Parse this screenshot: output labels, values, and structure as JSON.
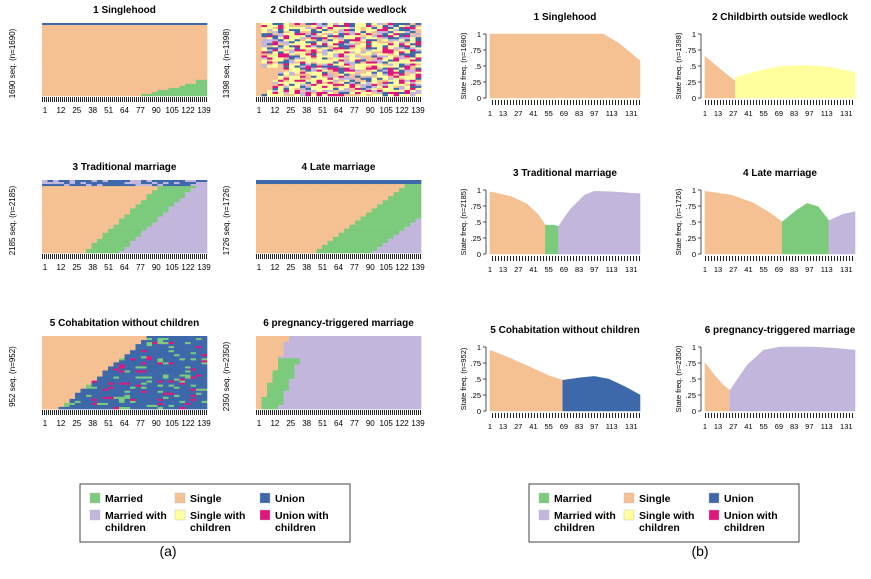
{
  "colors": {
    "Married": "#7ccb7c",
    "Single": "#f5c193",
    "Union": "#3d68aa",
    "Married with children": "#c3b6dc",
    "Single with children": "#ffff9e",
    "Union with children": "#e0167d"
  },
  "legend": {
    "items": [
      {
        "label": "Married",
        "color_key": "Married"
      },
      {
        "label": "Married with\nchildren",
        "color_key": "Married with children"
      },
      {
        "label": "Single",
        "color_key": "Single"
      },
      {
        "label": "Single with\nchildren",
        "color_key": "Single with children"
      },
      {
        "label": "Union",
        "color_key": "Union"
      },
      {
        "label": "Union with\nchildren",
        "color_key": "Union with children"
      }
    ]
  },
  "panel_labels": [
    "(a)",
    "(b)"
  ],
  "chart_data": [
    {
      "type": "area",
      "panel": "a",
      "subtype": "sequence index plot",
      "clusters": [
        {
          "title": "1 Singlehood",
          "ylabel": "1690 seq. (n=1690)",
          "x_ticks": [
            "1",
            "12",
            "25",
            "38",
            "51",
            "64",
            "77",
            "90",
            "105",
            "122",
            "139"
          ]
        },
        {
          "title": "2 Childbirth outside wedlock",
          "ylabel": "1398 seq. (n=1398)",
          "x_ticks": [
            "1",
            "12",
            "25",
            "38",
            "51",
            "64",
            "77",
            "90",
            "105",
            "122",
            "139"
          ]
        },
        {
          "title": "3 Traditional marriage",
          "ylabel": "2185 seq. (n=2185)",
          "x_ticks": [
            "1",
            "12",
            "25",
            "38",
            "51",
            "64",
            "77",
            "90",
            "105",
            "122",
            "139"
          ]
        },
        {
          "title": "4 Late marriage",
          "ylabel": "1726 seq. (n=1726)",
          "x_ticks": [
            "1",
            "12",
            "25",
            "38",
            "51",
            "64",
            "77",
            "90",
            "105",
            "122",
            "139"
          ]
        },
        {
          "title": "5 Cohabitation without children",
          "ylabel": "952 seq. (n=952)",
          "x_ticks": [
            "1",
            "12",
            "25",
            "38",
            "51",
            "64",
            "77",
            "90",
            "105",
            "122",
            "139"
          ]
        },
        {
          "title": "6 pregnancy-triggered marriage",
          "ylabel": "2350 seq. (n=2350)",
          "x_ticks": [
            "1",
            "12",
            "25",
            "38",
            "51",
            "64",
            "77",
            "90",
            "105",
            "122",
            "139"
          ]
        }
      ]
    },
    {
      "type": "area",
      "panel": "b",
      "subtype": "state distribution plot",
      "y_ticks": [
        "0",
        ".25",
        ".5",
        ".75",
        "1"
      ],
      "ylim": [
        0,
        1
      ],
      "x_ticks": [
        "1",
        "13",
        "27",
        "41",
        "55",
        "69",
        "83",
        "97",
        "113",
        "131"
      ],
      "clusters": [
        {
          "title": "1 Singlehood",
          "ylabel": "State freq. (n=1690)",
          "segments": [
            {
              "state": "Single",
              "points": [
                [
                  1,
                  1
                ],
                [
                  20,
                  1
                ],
                [
                  50,
                  1
                ],
                [
                  80,
                  1
                ],
                [
                  105,
                  1
                ],
                [
                  120,
                  0.85
                ],
                [
                  139,
                  0.58
                ]
              ]
            }
          ]
        },
        {
          "title": "2 Childbirth outside wedlock",
          "ylabel": "State freq. (n=1398)",
          "segments": [
            {
              "state": "Single",
              "points": [
                [
                  1,
                  0.65
                ],
                [
                  10,
                  0.52
                ],
                [
                  20,
                  0.38
                ],
                [
                  29,
                  0.26
                ]
              ]
            },
            {
              "state": "Single with children",
              "points": [
                [
                  29,
                  0.32
                ],
                [
                  50,
                  0.42
                ],
                [
                  70,
                  0.49
                ],
                [
                  95,
                  0.51
                ],
                [
                  115,
                  0.48
                ],
                [
                  139,
                  0.4
                ]
              ]
            }
          ]
        },
        {
          "title": "3 Traditional marriage",
          "ylabel": "State freq. (n=2185)",
          "segments": [
            {
              "state": "Single",
              "points": [
                [
                  1,
                  0.97
                ],
                [
                  20,
                  0.9
                ],
                [
                  35,
                  0.78
                ],
                [
                  45,
                  0.62
                ],
                [
                  52,
                  0.45
                ]
              ]
            },
            {
              "state": "Married",
              "points": [
                [
                  52,
                  0.45
                ],
                [
                  60,
                  0.45
                ],
                [
                  64,
                  0.43
                ]
              ]
            },
            {
              "state": "Married with children",
              "points": [
                [
                  64,
                  0.43
                ],
                [
                  75,
                  0.7
                ],
                [
                  88,
                  0.92
                ],
                [
                  97,
                  0.98
                ],
                [
                  115,
                  0.97
                ],
                [
                  139,
                  0.94
                ]
              ]
            }
          ]
        },
        {
          "title": "4 Late marriage",
          "ylabel": "State freq. (n=1726)",
          "segments": [
            {
              "state": "Single",
              "points": [
                [
                  1,
                  0.98
                ],
                [
                  25,
                  0.92
                ],
                [
                  45,
                  0.8
                ],
                [
                  60,
                  0.65
                ],
                [
                  72,
                  0.5
                ]
              ]
            },
            {
              "state": "Married",
              "points": [
                [
                  72,
                  0.5
                ],
                [
                  85,
                  0.68
                ],
                [
                  95,
                  0.79
                ],
                [
                  105,
                  0.74
                ],
                [
                  115,
                  0.52
                ]
              ]
            },
            {
              "state": "Married with children",
              "points": [
                [
                  115,
                  0.52
                ],
                [
                  128,
                  0.62
                ],
                [
                  139,
                  0.66
                ]
              ]
            }
          ]
        },
        {
          "title": "5 Cohabitation without children",
          "ylabel": "State freq. (n=952)",
          "segments": [
            {
              "state": "Single",
              "points": [
                [
                  1,
                  0.95
                ],
                [
                  20,
                  0.82
                ],
                [
                  40,
                  0.67
                ],
                [
                  55,
                  0.55
                ],
                [
                  68,
                  0.48
                ]
              ]
            },
            {
              "state": "Union",
              "points": [
                [
                  68,
                  0.48
                ],
                [
                  85,
                  0.52
                ],
                [
                  97,
                  0.54
                ],
                [
                  110,
                  0.5
                ],
                [
                  125,
                  0.38
                ],
                [
                  139,
                  0.25
                ]
              ]
            }
          ]
        },
        {
          "title": "6 pregnancy-triggered marriage",
          "ylabel": "State freq. (n=2350)",
          "segments": [
            {
              "state": "Single",
              "points": [
                [
                  1,
                  0.75
                ],
                [
                  10,
                  0.55
                ],
                [
                  18,
                  0.4
                ],
                [
                  24,
                  0.32
                ]
              ]
            },
            {
              "state": "Married with children",
              "points": [
                [
                  24,
                  0.32
                ],
                [
                  40,
                  0.72
                ],
                [
                  55,
                  0.95
                ],
                [
                  70,
                  1
                ],
                [
                  100,
                  1
                ],
                [
                  120,
                  0.98
                ],
                [
                  139,
                  0.95
                ]
              ]
            }
          ]
        }
      ]
    }
  ]
}
